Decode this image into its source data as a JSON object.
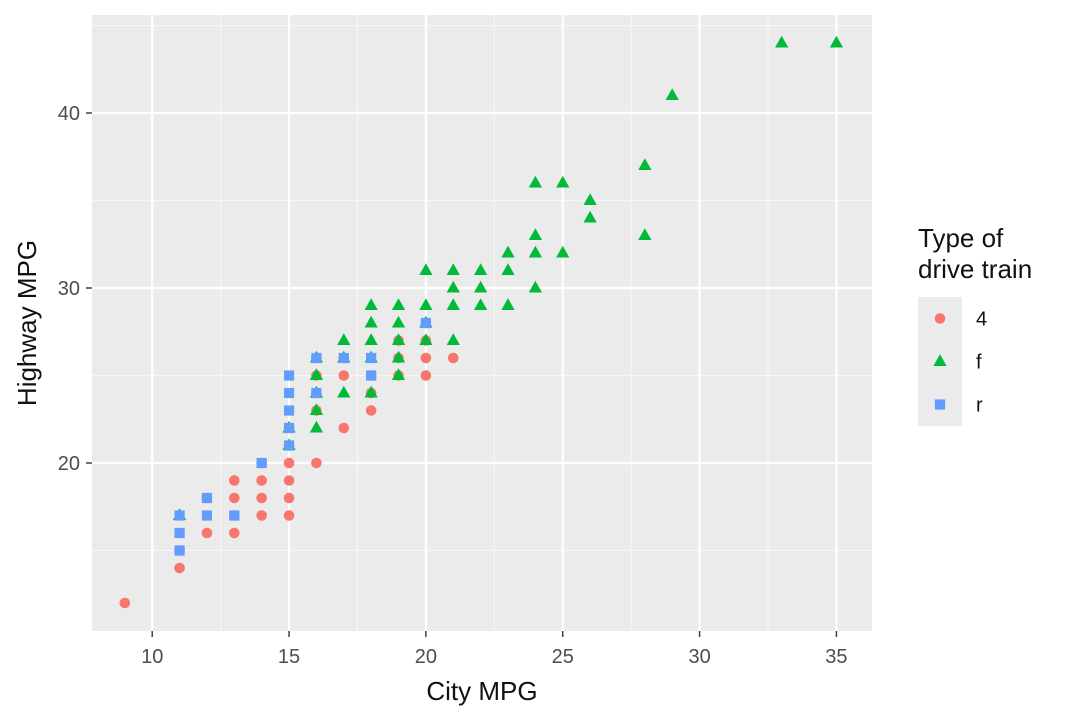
{
  "chart_data": {
    "type": "scatter",
    "title": "",
    "xlabel": "City MPG",
    "ylabel": "Highway MPG",
    "xlim": [
      7.8,
      36.3
    ],
    "ylim": [
      10.4,
      45.6
    ],
    "x_ticks": [
      10,
      15,
      20,
      25,
      30,
      35
    ],
    "y_ticks": [
      20,
      30,
      40
    ],
    "x_minor_ticks": [
      12.5,
      17.5,
      22.5,
      27.5,
      32.5
    ],
    "y_minor_ticks": [
      15,
      25,
      35,
      45
    ],
    "grid": true,
    "legend": {
      "title_lines": [
        "Type of",
        "drive train"
      ],
      "placement": "right"
    },
    "series": [
      {
        "name": "4",
        "color": "#F8766D",
        "shape": "circle",
        "points": [
          [
            9,
            12
          ],
          [
            11,
            14
          ],
          [
            11,
            15
          ],
          [
            12,
            16
          ],
          [
            12,
            18
          ],
          [
            13,
            16
          ],
          [
            13,
            17
          ],
          [
            13,
            18
          ],
          [
            13,
            19
          ],
          [
            14,
            17
          ],
          [
            14,
            18
          ],
          [
            14,
            19
          ],
          [
            14,
            20
          ],
          [
            15,
            17
          ],
          [
            15,
            18
          ],
          [
            15,
            19
          ],
          [
            15,
            20
          ],
          [
            15,
            21
          ],
          [
            15,
            22
          ],
          [
            16,
            20
          ],
          [
            16,
            23
          ],
          [
            16,
            24
          ],
          [
            16,
            25
          ],
          [
            16,
            26
          ],
          [
            17,
            22
          ],
          [
            17,
            25
          ],
          [
            17,
            26
          ],
          [
            18,
            23
          ],
          [
            18,
            24
          ],
          [
            18,
            25
          ],
          [
            19,
            25
          ],
          [
            19,
            26
          ],
          [
            19,
            27
          ],
          [
            20,
            25
          ],
          [
            20,
            26
          ],
          [
            20,
            27
          ],
          [
            20,
            28
          ],
          [
            21,
            26
          ]
        ]
      },
      {
        "name": "f",
        "color": "#00BA38",
        "shape": "triangle",
        "points": [
          [
            11,
            17
          ],
          [
            15,
            21
          ],
          [
            15,
            22
          ],
          [
            16,
            22
          ],
          [
            16,
            23
          ],
          [
            16,
            24
          ],
          [
            16,
            25
          ],
          [
            16,
            26
          ],
          [
            17,
            24
          ],
          [
            17,
            26
          ],
          [
            17,
            27
          ],
          [
            18,
            24
          ],
          [
            18,
            26
          ],
          [
            18,
            27
          ],
          [
            18,
            28
          ],
          [
            18,
            29
          ],
          [
            19,
            25
          ],
          [
            19,
            26
          ],
          [
            19,
            27
          ],
          [
            19,
            28
          ],
          [
            19,
            29
          ],
          [
            20,
            27
          ],
          [
            20,
            28
          ],
          [
            20,
            29
          ],
          [
            20,
            31
          ],
          [
            21,
            27
          ],
          [
            21,
            29
          ],
          [
            21,
            30
          ],
          [
            21,
            31
          ],
          [
            22,
            29
          ],
          [
            22,
            30
          ],
          [
            22,
            31
          ],
          [
            23,
            29
          ],
          [
            23,
            31
          ],
          [
            23,
            32
          ],
          [
            24,
            30
          ],
          [
            24,
            32
          ],
          [
            24,
            33
          ],
          [
            24,
            36
          ],
          [
            25,
            32
          ],
          [
            25,
            36
          ],
          [
            26,
            34
          ],
          [
            26,
            35
          ],
          [
            28,
            33
          ],
          [
            28,
            37
          ],
          [
            29,
            41
          ],
          [
            33,
            44
          ],
          [
            35,
            44
          ]
        ]
      },
      {
        "name": "r",
        "color": "#619CFF",
        "shape": "square",
        "points": [
          [
            11,
            15
          ],
          [
            11,
            16
          ],
          [
            11,
            17
          ],
          [
            12,
            17
          ],
          [
            12,
            18
          ],
          [
            13,
            17
          ],
          [
            14,
            20
          ],
          [
            15,
            21
          ],
          [
            15,
            22
          ],
          [
            15,
            23
          ],
          [
            15,
            24
          ],
          [
            15,
            25
          ],
          [
            16,
            24
          ],
          [
            16,
            26
          ],
          [
            17,
            26
          ],
          [
            18,
            25
          ],
          [
            18,
            26
          ],
          [
            20,
            28
          ]
        ]
      }
    ]
  }
}
